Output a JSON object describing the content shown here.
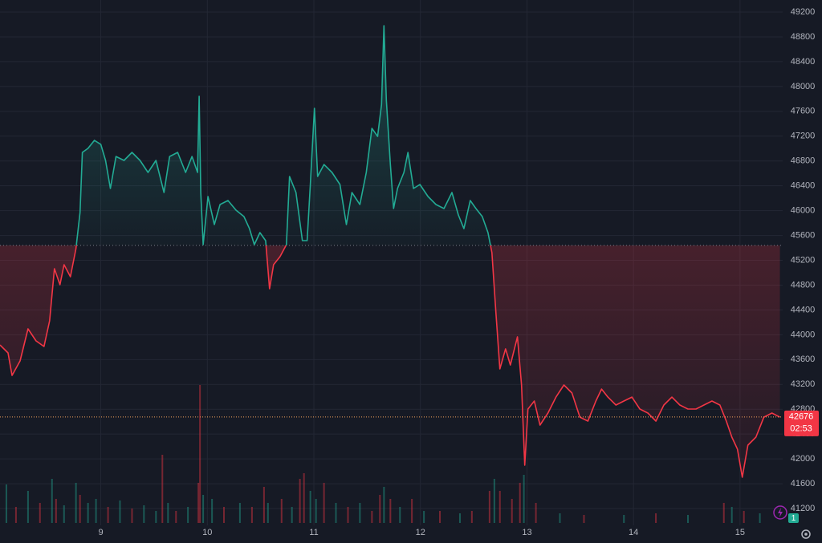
{
  "chart_data": {
    "type": "baseline",
    "x": [
      8.054,
      8.129,
      8.167,
      8.242,
      8.317,
      8.392,
      8.467,
      8.52,
      8.565,
      8.617,
      8.655,
      8.715,
      8.767,
      8.805,
      8.827,
      8.88,
      8.94,
      9.0,
      9.045,
      9.09,
      9.143,
      9.218,
      9.293,
      9.368,
      9.443,
      9.518,
      9.593,
      9.646,
      9.721,
      9.796,
      9.856,
      9.908,
      9.923,
      9.938,
      9.961,
      10.006,
      10.066,
      10.119,
      10.194,
      10.269,
      10.344,
      10.396,
      10.441,
      10.494,
      10.547,
      10.584,
      10.622,
      10.682,
      10.742,
      10.772,
      10.832,
      10.892,
      10.937,
      10.967,
      11.005,
      11.035,
      11.095,
      11.17,
      11.245,
      11.305,
      11.357,
      11.432,
      11.492,
      11.545,
      11.598,
      11.635,
      11.658,
      11.68,
      11.718,
      11.748,
      11.785,
      11.845,
      11.883,
      11.935,
      11.995,
      12.071,
      12.146,
      12.221,
      12.296,
      12.356,
      12.408,
      12.468,
      12.521,
      12.581,
      12.634,
      12.671,
      12.709,
      12.746,
      12.799,
      12.844,
      12.911,
      12.949,
      12.979,
      13.009,
      13.069,
      13.122,
      13.197,
      13.272,
      13.347,
      13.422,
      13.497,
      13.572,
      13.647,
      13.7,
      13.76,
      13.835,
      13.91,
      13.985,
      14.06,
      14.135,
      14.21,
      14.285,
      14.36,
      14.435,
      14.511,
      14.586,
      14.661,
      14.736,
      14.811,
      14.871,
      14.923,
      14.976,
      15.021,
      15.074,
      15.149,
      15.224,
      15.299,
      15.374
    ],
    "values": [
      43836,
      43707,
      43345,
      43578,
      44095,
      43901,
      43811,
      44224,
      45064,
      44806,
      45129,
      44935,
      45387,
      45969,
      46938,
      47003,
      47132,
      47067,
      46809,
      46357,
      46873,
      46809,
      46938,
      46809,
      46615,
      46809,
      46292,
      46873,
      46938,
      46615,
      46873,
      46615,
      47843,
      46292,
      45452,
      46228,
      45775,
      46098,
      46163,
      46008,
      45904,
      45710,
      45452,
      45646,
      45517,
      44741,
      45129,
      45258,
      45452,
      46551,
      46292,
      45517,
      45517,
      46421,
      47649,
      46551,
      46744,
      46615,
      46421,
      45775,
      46292,
      46098,
      46615,
      47326,
      47196,
      47713,
      48980,
      47778,
      46744,
      46034,
      46357,
      46615,
      46938,
      46357,
      46421,
      46228,
      46098,
      46034,
      46292,
      45930,
      45710,
      46163,
      46034,
      45904,
      45646,
      45323,
      44353,
      43449,
      43772,
      43513,
      43966,
      43190,
      41898,
      42803,
      42932,
      42544,
      42738,
      42996,
      43190,
      43061,
      42673,
      42609,
      42932,
      43125,
      42996,
      42867,
      42932,
      42996,
      42803,
      42738,
      42609,
      42867,
      42996,
      42867,
      42803,
      42803,
      42867,
      42932,
      42867,
      42609,
      42350,
      42156,
      41704,
      42221,
      42350,
      42673,
      42738,
      42673
    ],
    "baseline": 45439,
    "up_color": "#22ab94",
    "down_color": "#f23645",
    "xlim": [
      8.054,
      15.4
    ],
    "xticks": [
      9,
      10,
      11,
      12,
      13,
      14,
      15
    ],
    "ylim": [
      40929,
      49394
    ],
    "yticks": [
      41200,
      41600,
      42000,
      42400,
      42800,
      43200,
      43600,
      44000,
      44400,
      44800,
      45200,
      45600,
      46000,
      46400,
      46800,
      47200,
      47600,
      48000,
      48400,
      48800,
      49200
    ],
    "grid": true,
    "volume": {
      "x": [
        8.114,
        8.204,
        8.317,
        8.429,
        8.542,
        8.58,
        8.655,
        8.767,
        8.805,
        8.88,
        8.955,
        9.068,
        9.18,
        9.293,
        9.405,
        9.518,
        9.578,
        9.631,
        9.706,
        9.818,
        9.916,
        9.931,
        9.961,
        10.044,
        10.156,
        10.306,
        10.419,
        10.532,
        10.569,
        10.697,
        10.794,
        10.869,
        10.907,
        10.967,
        11.02,
        11.095,
        11.207,
        11.32,
        11.432,
        11.545,
        11.62,
        11.658,
        11.718,
        11.808,
        11.92,
        12.033,
        12.183,
        12.371,
        12.483,
        12.649,
        12.694,
        12.746,
        12.859,
        12.934,
        12.971,
        13.084,
        13.309,
        13.535,
        13.91,
        14.21,
        14.511,
        14.848,
        14.923,
        15.036,
        15.186
      ],
      "values": [
        48,
        20,
        40,
        25,
        55,
        30,
        22,
        50,
        35,
        25,
        30,
        20,
        28,
        18,
        22,
        15,
        85,
        25,
        15,
        20,
        50,
        172,
        35,
        30,
        20,
        25,
        20,
        45,
        25,
        30,
        20,
        55,
        62,
        40,
        30,
        50,
        25,
        20,
        25,
        15,
        35,
        45,
        30,
        20,
        30,
        15,
        15,
        12,
        15,
        40,
        55,
        40,
        30,
        50,
        60,
        25,
        12,
        10,
        10,
        12,
        10,
        25,
        20,
        15,
        12
      ],
      "colors": [
        "#22ab9470",
        "#f2364570",
        "#22ab9470",
        "#f2364570",
        "#22ab9470",
        "#f2364570",
        "#22ab9470",
        "#22ab9470",
        "#f2364570",
        "#22ab9470",
        "#22ab9470",
        "#f2364570",
        "#22ab9470",
        "#f2364570",
        "#22ab9470",
        "#22ab9470",
        "#f2364570",
        "#22ab9470",
        "#f2364570",
        "#22ab9470",
        "#f2364570",
        "#f2364570",
        "#22ab9470",
        "#22ab9470",
        "#f2364570",
        "#22ab9470",
        "#f2364570",
        "#f2364570",
        "#22ab9470",
        "#f2364570",
        "#22ab9470",
        "#f2364570",
        "#f2364570",
        "#22ab9470",
        "#22ab9470",
        "#f2364570",
        "#22ab9470",
        "#f2364570",
        "#22ab9470",
        "#f2364570",
        "#f2364570",
        "#22ab9470",
        "#f2364570",
        "#22ab9470",
        "#f2364570",
        "#22ab9470",
        "#f2364570",
        "#22ab9470",
        "#f2364570",
        "#f2364570",
        "#22ab9470",
        "#f2364570",
        "#f2364570",
        "#f2364570",
        "#22ab9470",
        "#f2364570",
        "#22ab9470",
        "#f2364570",
        "#22ab9470",
        "#f2364570",
        "#22ab9470",
        "#f2364570",
        "#22ab9470",
        "#f2364570",
        "#22ab9470"
      ],
      "ylim": [
        0,
        200
      ]
    },
    "last_price": 42676,
    "countdown": "02:53",
    "badge": "1"
  }
}
